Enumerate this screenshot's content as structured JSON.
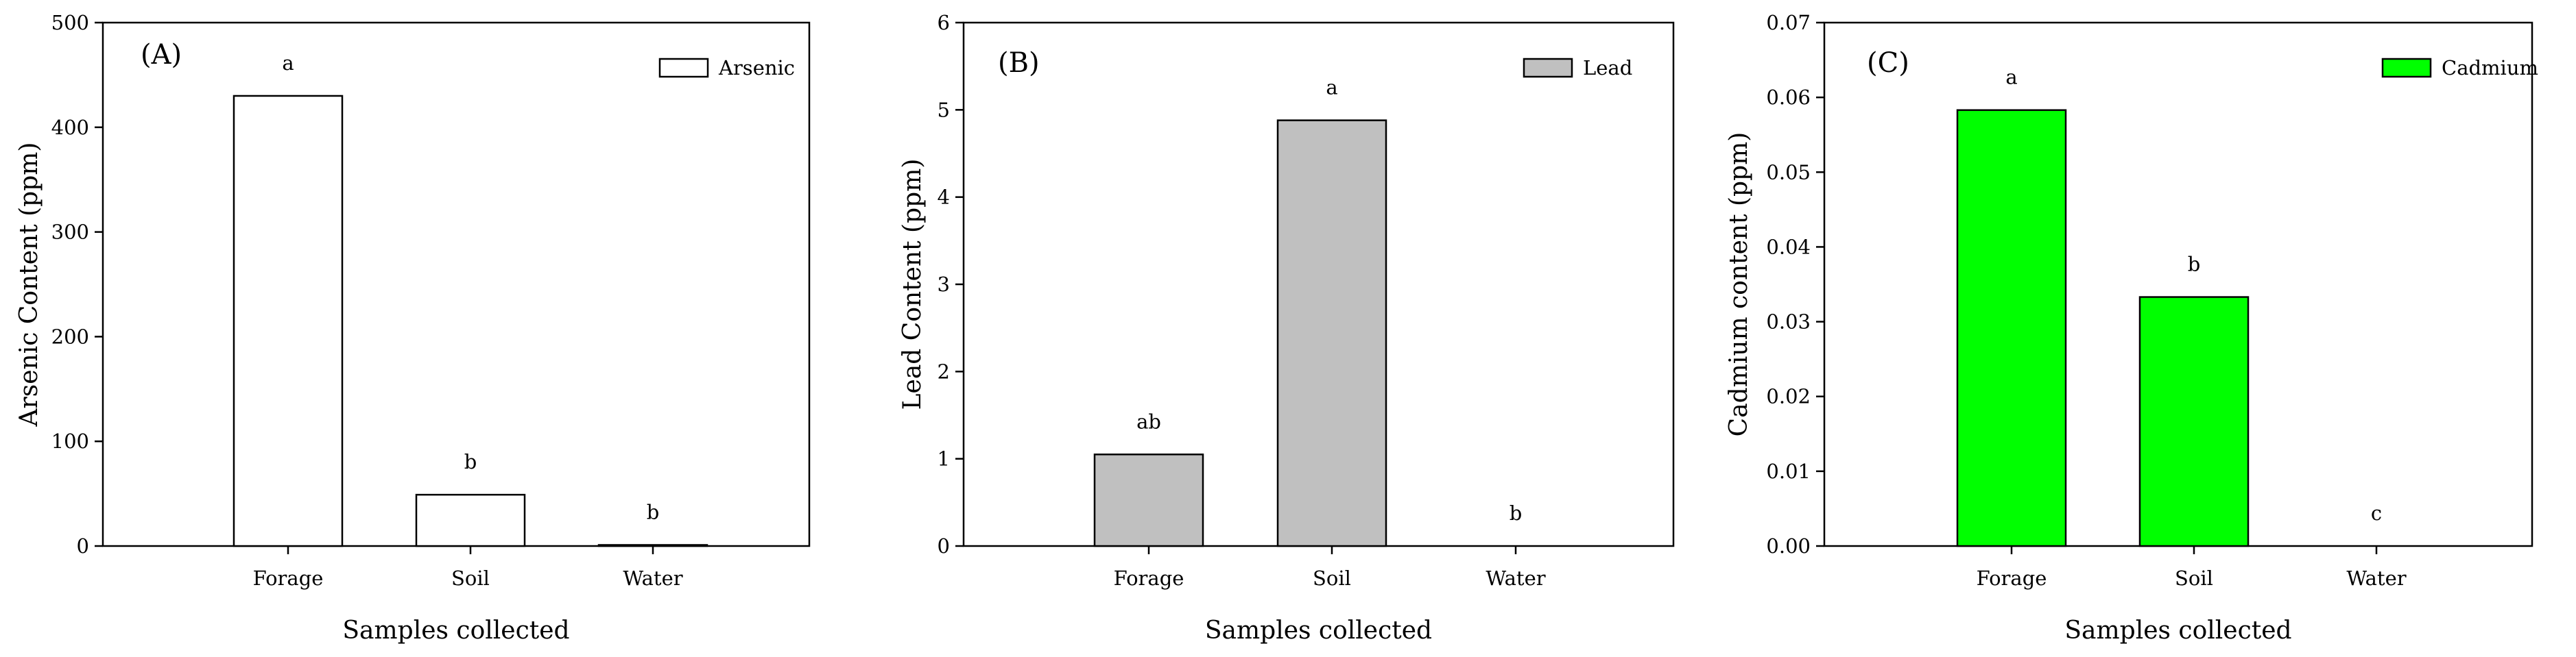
{
  "chart_data": [
    {
      "type": "bar",
      "panel": "(A)",
      "categories": [
        "Forage",
        "Soil",
        "Water"
      ],
      "values": [
        430,
        49,
        1
      ],
      "significance": [
        "a",
        "b",
        "b"
      ],
      "xlabel": "Samples collected",
      "ylabel": "Arsenic Content (ppm)",
      "ylim": [
        0,
        500
      ],
      "yticks": [
        "0",
        "100",
        "200",
        "300",
        "400",
        "500"
      ],
      "legend": "Arsenic",
      "legend_position": "top-right",
      "color": "#ffffff",
      "grid": false
    },
    {
      "type": "bar",
      "panel": "(B)",
      "categories": [
        "Forage",
        "Soil",
        "Water"
      ],
      "values": [
        1.05,
        4.88,
        0
      ],
      "significance": [
        "ab",
        "a",
        "b"
      ],
      "xlabel": "Samples collected",
      "ylabel": "Lead Content  (ppm)",
      "ylim": [
        0,
        6
      ],
      "yticks": [
        "0",
        "1",
        "2",
        "3",
        "4",
        "5",
        "6"
      ],
      "legend": "Lead",
      "legend_position": "top-right",
      "color": "#c0c0c0",
      "grid": false
    },
    {
      "type": "bar",
      "panel": "(C)",
      "categories": [
        "Forage",
        "Soil",
        "Water"
      ],
      "values": [
        0.0583,
        0.0333,
        0
      ],
      "significance": [
        "a",
        "b",
        "c"
      ],
      "xlabel": "Samples collected",
      "ylabel": "Cadmium content (ppm)",
      "ylim": [
        0,
        0.07
      ],
      "yticks": [
        "0.00",
        "0.01",
        "0.02",
        "0.03",
        "0.04",
        "0.05",
        "0.06",
        "0.07"
      ],
      "legend": "Cadmium",
      "legend_position": "top-right",
      "color": "#00ff00",
      "grid": false
    }
  ]
}
